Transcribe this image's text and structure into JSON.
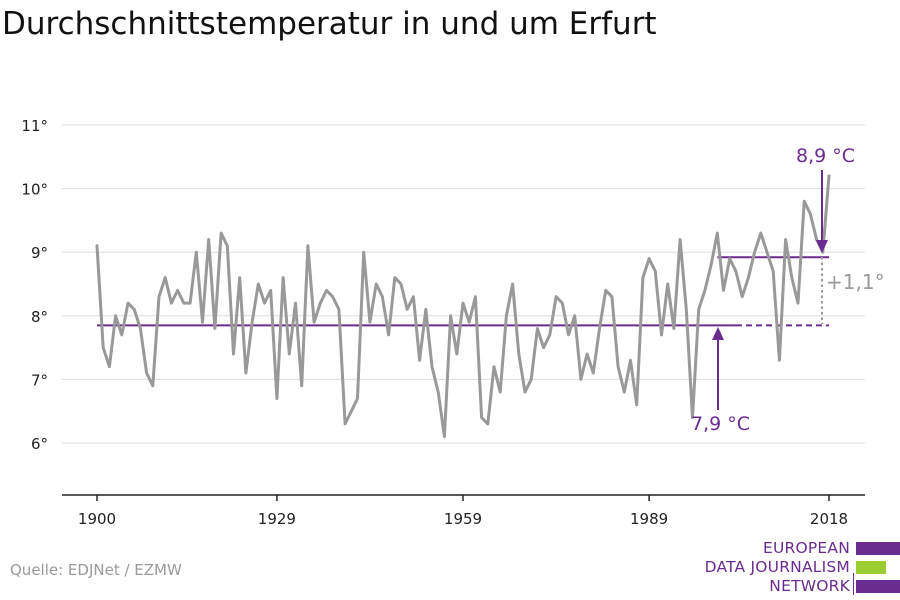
{
  "title": "Durchschnittstemperatur in und um Erfurt",
  "source": "Quelle: EDJNet / EZMW",
  "logo": {
    "lines": [
      "EUROPEAN",
      "DATA JOURNALISM",
      "NETWORK"
    ],
    "colors": {
      "purple": "#6a2c8e",
      "green": "#9acd32"
    }
  },
  "colors": {
    "line": "#999999",
    "accent": "#6a2c8e",
    "grid": "#dddddd",
    "delta": "#9a9a9a"
  },
  "chart_data": {
    "type": "line",
    "title": "Durchschnittstemperatur in und um Erfurt",
    "xlabel": "",
    "ylabel": "",
    "xlim": [
      1900,
      2018
    ],
    "ylim": [
      5,
      11
    ],
    "x_ticks": [
      1900,
      1929,
      1959,
      1989,
      2018
    ],
    "x_tick_labels": [
      "1900",
      "1929",
      "1959",
      "1989",
      "2018"
    ],
    "y_ticks": [
      6,
      7,
      8,
      9,
      10,
      11
    ],
    "y_tick_labels": [
      "6°",
      "7°",
      "8°",
      "9°",
      "10°",
      "11°"
    ],
    "grid": true,
    "series": [
      {
        "x": [
          1900,
          1901,
          1902,
          1903,
          1904,
          1905,
          1906,
          1907,
          1908,
          1909,
          1910,
          1911,
          1912,
          1913,
          1914,
          1915,
          1916,
          1917,
          1918,
          1919,
          1920,
          1921,
          1922,
          1923,
          1924,
          1925,
          1926,
          1927,
          1928,
          1929,
          1930,
          1931,
          1932,
          1933,
          1934,
          1935,
          1936,
          1937,
          1938,
          1939,
          1940,
          1941,
          1942,
          1943,
          1944,
          1945,
          1946,
          1947,
          1948,
          1949,
          1950,
          1951,
          1952,
          1953,
          1954,
          1955,
          1956,
          1957,
          1958,
          1959,
          1960,
          1961,
          1962,
          1963,
          1964,
          1965,
          1966,
          1967,
          1968,
          1969,
          1970,
          1971,
          1972,
          1973,
          1974,
          1975,
          1976,
          1977,
          1978,
          1979,
          1980,
          1981,
          1982,
          1983,
          1984,
          1985,
          1986,
          1987,
          1988,
          1989,
          1990,
          1991,
          1992,
          1993,
          1994,
          1995,
          1996,
          1997,
          1998,
          1999,
          2000,
          2001,
          2002,
          2003,
          2004,
          2005,
          2006,
          2007,
          2008,
          2009,
          2010,
          2011,
          2012,
          2013,
          2014,
          2015,
          2016,
          2017,
          2018
        ],
        "y": [
          9.1,
          7.5,
          7.2,
          8.0,
          7.7,
          8.2,
          8.1,
          7.8,
          7.1,
          6.9,
          8.3,
          8.6,
          8.2,
          8.4,
          8.2,
          8.2,
          9.0,
          7.9,
          9.2,
          7.8,
          9.3,
          9.1,
          7.4,
          8.6,
          7.1,
          7.9,
          8.5,
          8.2,
          8.4,
          6.7,
          8.6,
          7.4,
          8.2,
          6.9,
          9.1,
          7.9,
          8.2,
          8.4,
          8.3,
          8.1,
          6.3,
          6.5,
          6.7,
          9.0,
          7.9,
          8.5,
          8.3,
          7.7,
          8.6,
          8.5,
          8.1,
          8.3,
          7.3,
          8.1,
          7.2,
          6.8,
          6.1,
          8.0,
          7.4,
          8.2,
          7.9,
          8.3,
          6.4,
          6.3,
          7.2,
          6.8,
          8.0,
          8.5,
          7.4,
          6.8,
          7.0,
          7.8,
          7.5,
          7.7,
          8.3,
          8.2,
          7.7,
          8.0,
          7.0,
          7.4,
          7.1,
          7.8,
          8.4,
          8.3,
          7.2,
          6.8,
          7.3,
          6.6,
          8.6,
          8.9,
          8.7,
          7.7,
          8.5,
          7.8,
          9.2,
          8.1,
          6.4,
          8.1,
          8.4,
          8.8,
          9.3,
          8.4,
          8.9,
          8.7,
          8.3,
          8.6,
          9.0,
          9.3,
          9.0,
          8.7,
          7.3,
          9.2,
          8.6,
          8.2,
          9.8,
          9.6,
          9.2,
          9.0,
          10.2
        ]
      }
    ],
    "reference_lines": [
      {
        "from": 1900,
        "to": 2003,
        "value": 7.85,
        "style": "solid"
      },
      {
        "from": 2003,
        "to": 2018,
        "value": 7.85,
        "style": "dashed"
      },
      {
        "from": 2000,
        "to": 2018,
        "value": 8.92,
        "style": "solid"
      }
    ],
    "annotations": {
      "low": "7,9 °C",
      "high": "8,9 °C",
      "delta": "+1,1°"
    }
  }
}
